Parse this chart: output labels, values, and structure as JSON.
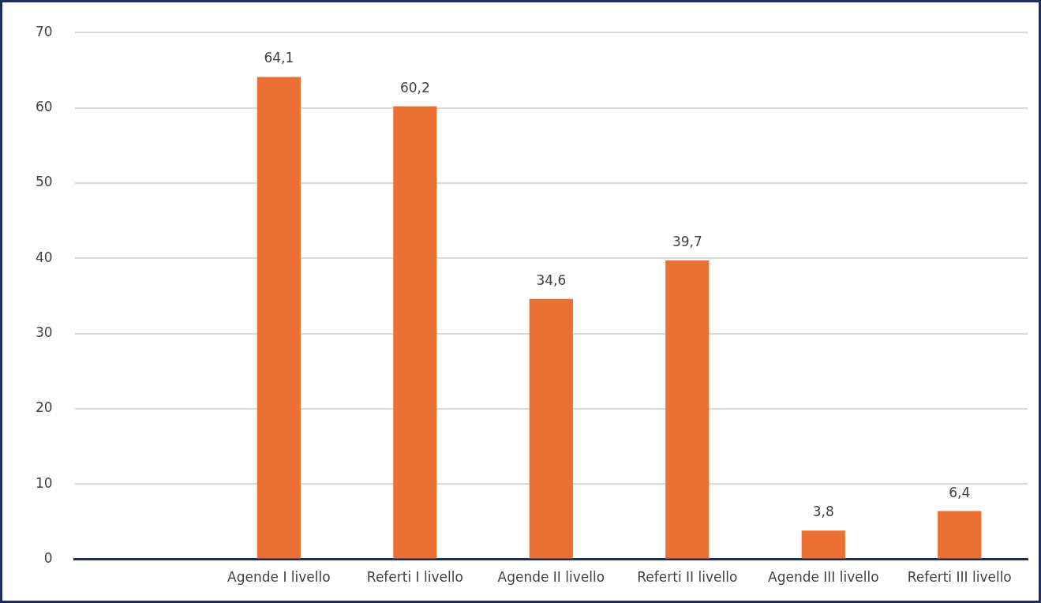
{
  "chart_data": {
    "type": "bar",
    "categories": [
      null,
      "Agende I livello",
      "Referti I livello",
      "Agende II livello",
      "Referti II livello",
      "Agende III livello",
      "Referti III livello"
    ],
    "values": [
      null,
      64.1,
      60.2,
      34.6,
      39.7,
      3.8,
      6.4
    ],
    "value_labels": [
      null,
      "64,1",
      "60,2",
      "34,6",
      "39,7",
      "3,8",
      "6,4"
    ],
    "color": "#ea7133",
    "ylim": [
      0,
      70
    ],
    "yticks": [
      0,
      10,
      20,
      30,
      40,
      50,
      60,
      70
    ],
    "grid": "y",
    "legend": false
  }
}
